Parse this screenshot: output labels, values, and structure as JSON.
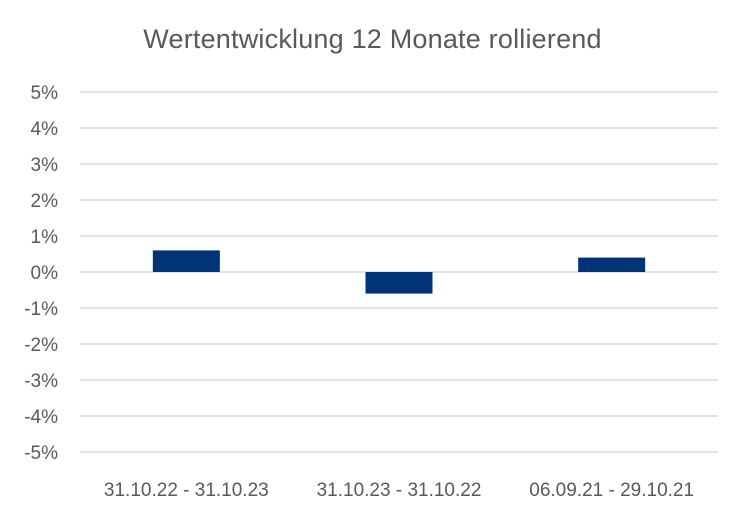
{
  "chart_data": {
    "type": "bar",
    "title": "Wertentwicklung 12 Monate rollierend",
    "xlabel": "",
    "ylabel": "",
    "categories": [
      "31.10.22 - 31.10.23",
      "31.10.23 - 31.10.22",
      "06.09.21 - 29.10.21"
    ],
    "values": [
      0.6,
      -0.6,
      0.4
    ],
    "ylim": [
      -5,
      5
    ],
    "yticks": [
      "5%",
      "4%",
      "3%",
      "2%",
      "1%",
      "0%",
      "-1%",
      "-2%",
      "-3%",
      "-4%",
      "-5%"
    ],
    "grid": true,
    "legend": "none",
    "bar_color": "#003378",
    "grid_color": "#d9d9d9"
  }
}
